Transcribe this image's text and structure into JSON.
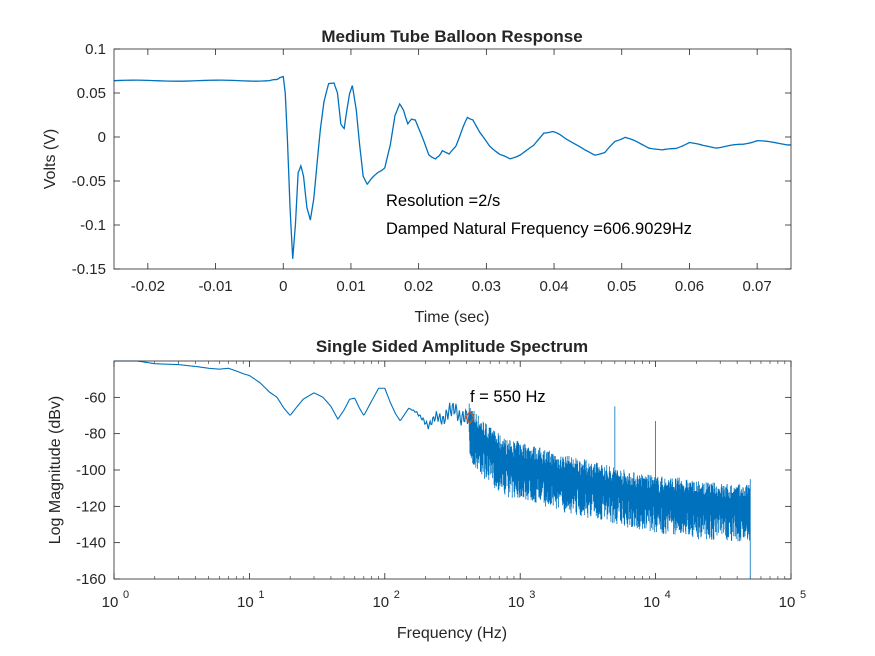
{
  "chart_data": [
    {
      "type": "line",
      "title": "Medium Tube Balloon Response",
      "xlabel": "Time (sec)",
      "ylabel": "Volts (V)",
      "xlim": [
        -0.025,
        0.075
      ],
      "ylim": [
        -0.15,
        0.1
      ],
      "x_ticks": [
        -0.02,
        -0.01,
        0,
        0.01,
        0.02,
        0.03,
        0.04,
        0.05,
        0.06,
        0.07
      ],
      "x_tick_labels": [
        "-0.02",
        "-0.01",
        "0",
        "0.01",
        "0.02",
        "0.03",
        "0.04",
        "0.05",
        "0.06",
        "0.07"
      ],
      "y_ticks": [
        -0.15,
        -0.1,
        -0.05,
        0,
        0.05,
        0.1
      ],
      "y_tick_labels": [
        "-0.15",
        "-0.1",
        "-0.05",
        "0",
        "0.05",
        "0.1"
      ],
      "line_color": "#0072BD",
      "series": [
        {
          "points": [
            [
              -0.025,
              0.064
            ],
            [
              -0.02,
              0.064
            ],
            [
              -0.015,
              0.064
            ],
            [
              -0.01,
              0.064
            ],
            [
              -0.005,
              0.064
            ],
            [
              -0.002,
              0.064
            ],
            [
              -0.001,
              0.065
            ],
            [
              -0.0005,
              0.068
            ],
            [
              0.0,
              0.068
            ],
            [
              0.0003,
              0.05
            ],
            [
              0.0006,
              0.0
            ],
            [
              0.001,
              -0.08
            ],
            [
              0.0014,
              -0.138
            ],
            [
              0.0018,
              -0.1
            ],
            [
              0.0022,
              -0.04
            ],
            [
              0.0026,
              -0.033
            ],
            [
              0.003,
              -0.045
            ],
            [
              0.0035,
              -0.08
            ],
            [
              0.004,
              -0.095
            ],
            [
              0.0045,
              -0.07
            ],
            [
              0.005,
              -0.03
            ],
            [
              0.0055,
              0.01
            ],
            [
              0.006,
              0.04
            ],
            [
              0.0067,
              0.06
            ],
            [
              0.0075,
              0.062
            ],
            [
              0.008,
              0.05
            ],
            [
              0.0085,
              0.015
            ],
            [
              0.009,
              0.01
            ],
            [
              0.0094,
              0.03
            ],
            [
              0.0098,
              0.05
            ],
            [
              0.0102,
              0.058
            ],
            [
              0.0108,
              0.03
            ],
            [
              0.0113,
              -0.01
            ],
            [
              0.0118,
              -0.045
            ],
            [
              0.0124,
              -0.053
            ],
            [
              0.013,
              -0.048
            ],
            [
              0.014,
              -0.04
            ],
            [
              0.015,
              -0.035
            ],
            [
              0.0158,
              -0.01
            ],
            [
              0.0165,
              0.025
            ],
            [
              0.0172,
              0.037
            ],
            [
              0.0178,
              0.03
            ],
            [
              0.0184,
              0.015
            ],
            [
              0.019,
              0.02
            ],
            [
              0.0195,
              0.02
            ],
            [
              0.0205,
              0.0
            ],
            [
              0.0215,
              -0.02
            ],
            [
              0.0225,
              -0.025
            ],
            [
              0.023,
              -0.022
            ],
            [
              0.0235,
              -0.015
            ],
            [
              0.0245,
              -0.02
            ],
            [
              0.0255,
              -0.01
            ],
            [
              0.0265,
              0.01
            ],
            [
              0.0272,
              0.022
            ],
            [
              0.028,
              0.02
            ],
            [
              0.029,
              0.005
            ],
            [
              0.0305,
              -0.01
            ],
            [
              0.032,
              -0.02
            ],
            [
              0.0335,
              -0.025
            ],
            [
              0.035,
              -0.02
            ],
            [
              0.037,
              -0.01
            ],
            [
              0.0385,
              0.005
            ],
            [
              0.0398,
              0.006
            ],
            [
              0.041,
              0.002
            ],
            [
              0.0425,
              -0.005
            ],
            [
              0.0445,
              -0.015
            ],
            [
              0.046,
              -0.02
            ],
            [
              0.0475,
              -0.018
            ],
            [
              0.049,
              -0.005
            ],
            [
              0.0505,
              0.0
            ],
            [
              0.052,
              -0.005
            ],
            [
              0.054,
              -0.012
            ],
            [
              0.056,
              -0.015
            ],
            [
              0.058,
              -0.013
            ],
            [
              0.06,
              -0.006
            ],
            [
              0.062,
              -0.01
            ],
            [
              0.064,
              -0.012
            ],
            [
              0.066,
              -0.01
            ],
            [
              0.068,
              -0.008
            ],
            [
              0.07,
              -0.004
            ],
            [
              0.072,
              -0.006
            ],
            [
              0.075,
              -0.009
            ]
          ]
        }
      ],
      "annotations": [
        {
          "text": "Resolution =2/s",
          "x": 0.0155,
          "y": -0.071
        },
        {
          "text": "Damped Natural Frequency =606.9029Hz",
          "x": 0.0155,
          "y": -0.1
        }
      ]
    },
    {
      "type": "line",
      "title": "Single Sided Amplitude Spectrum",
      "xlabel": "Frequency (Hz)",
      "ylabel": "Log Magnitude (dBv)",
      "xscale": "log",
      "xlim": [
        1,
        100000
      ],
      "ylim": [
        -160,
        -40
      ],
      "x_ticks": [
        1,
        10,
        100,
        1000,
        10000,
        100000
      ],
      "x_tick_labels": [
        {
          "base": "10",
          "exp": "0"
        },
        {
          "base": "10",
          "exp": "1"
        },
        {
          "base": "10",
          "exp": "2"
        },
        {
          "base": "10",
          "exp": "3"
        },
        {
          "base": "10",
          "exp": "4"
        },
        {
          "base": "10",
          "exp": "5"
        }
      ],
      "y_ticks": [
        -160,
        -140,
        -120,
        -100,
        -80,
        -60
      ],
      "y_tick_labels": [
        "-160",
        "-140",
        "-120",
        "-100",
        "-80",
        "-60"
      ],
      "line_color": "#0072BD",
      "series": [
        {
          "points": [
            [
              1,
              -40
            ],
            [
              1.5,
              -40
            ],
            [
              2,
              -41.5
            ],
            [
              3,
              -42
            ],
            [
              4,
              -43
            ],
            [
              5,
              -44
            ],
            [
              6,
              -44.5
            ],
            [
              7,
              -44
            ],
            [
              8,
              -45.5
            ],
            [
              9,
              -47
            ],
            [
              10,
              -48
            ],
            [
              12,
              -52
            ],
            [
              14,
              -57
            ],
            [
              16,
              -60
            ],
            [
              18,
              -66
            ],
            [
              20,
              -70
            ],
            [
              22,
              -66
            ],
            [
              25,
              -61
            ],
            [
              30,
              -57.5
            ],
            [
              35,
              -60
            ],
            [
              40,
              -65
            ],
            [
              45,
              -72
            ],
            [
              50,
              -67
            ],
            [
              55,
              -61
            ],
            [
              60,
              -60.5
            ],
            [
              65,
              -66
            ],
            [
              70,
              -70
            ],
            [
              80,
              -62
            ],
            [
              90,
              -55
            ],
            [
              100,
              -55
            ],
            [
              110,
              -63
            ],
            [
              120,
              -69
            ],
            [
              130,
              -73
            ],
            [
              150,
              -66
            ],
            [
              170,
              -68
            ],
            [
              190,
              -72
            ],
            [
              210,
              -76
            ],
            [
              240,
              -70
            ],
            [
              270,
              -73
            ],
            [
              300,
              -67
            ],
            [
              330,
              -66
            ],
            [
              360,
              -72
            ],
            [
              400,
              -70
            ],
            [
              450,
              -76
            ],
            [
              500,
              -80
            ],
            [
              600,
              -86
            ],
            [
              700,
              -90
            ],
            [
              800,
              -93
            ],
            [
              1000,
              -94
            ],
            [
              1500,
              -98
            ],
            [
              2000,
              -101
            ],
            [
              3000,
              -104
            ],
            [
              5000,
              -108
            ],
            [
              7000,
              -111
            ],
            [
              10000,
              -113
            ],
            [
              15000,
              -114
            ],
            [
              20000,
              -116
            ],
            [
              30000,
              -117
            ],
            [
              50000,
              -118
            ]
          ],
          "noise": [
            {
              "x_from": 420,
              "x_to": 50000,
              "band": 22,
              "spikes": [
                {
                  "x": 5000,
                  "y": -65
                },
                {
                  "x": 10000,
                  "y": -73
                }
              ]
            }
          ]
        }
      ],
      "marker": {
        "shape": "diamond",
        "color": "#D95319",
        "x": 425,
        "y": -71
      },
      "annotations": [
        {
          "text": "f = 550 Hz",
          "x": 440,
          "y": -62
        }
      ]
    }
  ]
}
